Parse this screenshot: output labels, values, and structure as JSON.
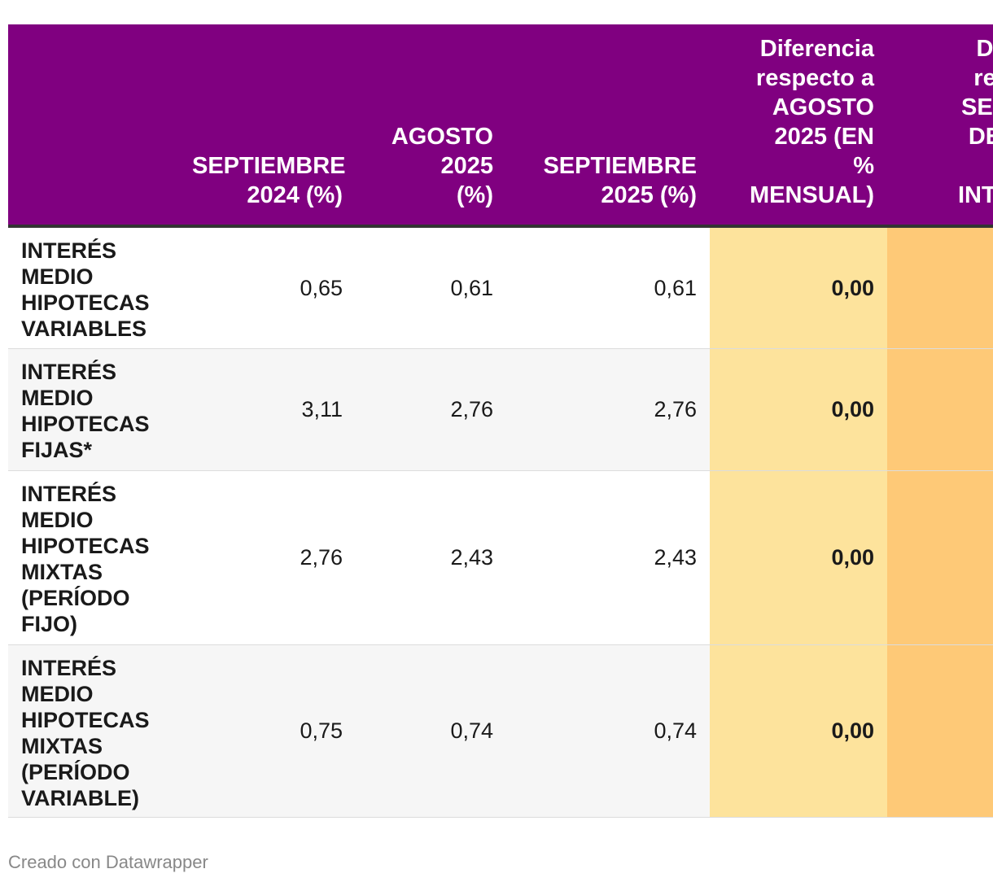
{
  "chart_data": {
    "type": "table",
    "columns": [
      "",
      "SEPTIEMBRE 2024 (%)",
      "AGOSTO 2025 (%)",
      "SEPTIEMBRE 2025 (%)",
      "Diferencia respecto a AGOSTO 2025 (EN % MENSUAL)",
      "D... re... SEP... DE ... INTE..."
    ],
    "header_lines": {
      "c1": [
        "SEPTIEMBRE",
        "2024 (%)"
      ],
      "c2": [
        "AGOSTO",
        "2025",
        "(%)"
      ],
      "c3": [
        "SEPTIEMBRE",
        "2025 (%)"
      ],
      "c4": [
        "Diferencia",
        "respecto a",
        "AGOSTO",
        "2025 (EN",
        "%",
        "MENSUAL)"
      ],
      "c5": [
        "D",
        "re",
        "SEP",
        "DE",
        "",
        "INTE"
      ]
    },
    "rows": [
      {
        "label_lines": [
          "INTERÉS",
          "MEDIO",
          "HIPOTECAS",
          "VARIABLES"
        ],
        "values": [
          "0,65",
          "0,61",
          "0,61",
          "0,00"
        ]
      },
      {
        "label_lines": [
          "INTERÉS",
          "MEDIO",
          "HIPOTECAS",
          "FIJAS*"
        ],
        "values": [
          "3,11",
          "2,76",
          "2,76",
          "0,00"
        ]
      },
      {
        "label_lines": [
          "INTERÉS",
          "MEDIO",
          "HIPOTECAS",
          "MIXTAS",
          "(PERÍODO",
          "FIJO)"
        ],
        "values": [
          "2,76",
          "2,43",
          "2,43",
          "0,00"
        ]
      },
      {
        "label_lines": [
          "INTERÉS",
          "MEDIO",
          "HIPOTECAS",
          "MIXTAS",
          "(PERÍODO",
          "VARIABLE)"
        ],
        "values": [
          "0,75",
          "0,74",
          "0,74",
          "0,00"
        ]
      }
    ]
  },
  "colors": {
    "header_bg": "#800080",
    "diff_column_bg": "#fde39c",
    "next_column_bg": "#fec977"
  },
  "footer": {
    "credit": "Creado con Datawrapper"
  }
}
